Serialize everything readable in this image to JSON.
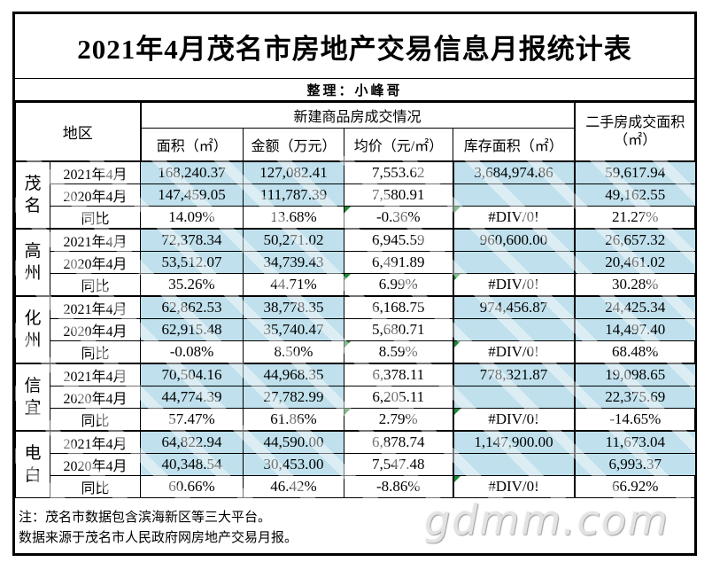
{
  "title": "2021年4月茂名市房地产交易信息月报统计表",
  "subtitle": "整理：小峰哥",
  "table": {
    "header": {
      "region": "地区",
      "new_homes_group": "新建商品房成交情况",
      "resale_line1": "二手房成交面积",
      "resale_line2": "（㎡）",
      "columns": [
        "面积（㎡）",
        "金额（万元）",
        "均价（元/㎡）",
        "库存面积（㎡）"
      ]
    },
    "groups": [
      {
        "region": "茂名",
        "rows": [
          {
            "label": "2021年4月",
            "area": "168,240.37",
            "amount": "127,082.41",
            "avg_price": "7,553.62",
            "inventory": "3,684,974.86",
            "resale": "59,617.94",
            "avg_flag": false,
            "inv_flag": false
          },
          {
            "label": "2020年4月",
            "area": "147,459.05",
            "amount": "111,787.39",
            "avg_price": "7,580.91",
            "inventory": "",
            "resale": "49,162.55",
            "avg_flag": false,
            "inv_flag": false
          },
          {
            "label": "同比",
            "area": "14.09%",
            "amount": "13.68%",
            "avg_price": "-0.36%",
            "inventory": "#DIV/0!",
            "resale": "21.27%",
            "avg_flag": true,
            "inv_flag": true
          }
        ]
      },
      {
        "region": "高州",
        "rows": [
          {
            "label": "2021年4月",
            "area": "72,378.34",
            "amount": "50,271.02",
            "avg_price": "6,945.59",
            "inventory": "960,600.00",
            "resale": "26,657.32",
            "avg_flag": false,
            "inv_flag": false
          },
          {
            "label": "2020年4月",
            "area": "53,512.07",
            "amount": "34,739.43",
            "avg_price": "6,491.89",
            "inventory": "",
            "resale": "20,461.02",
            "avg_flag": false,
            "inv_flag": false
          },
          {
            "label": "同比",
            "area": "35.26%",
            "amount": "44.71%",
            "avg_price": "6.99%",
            "inventory": "#DIV/0!",
            "resale": "30.28%",
            "avg_flag": true,
            "inv_flag": true
          }
        ]
      },
      {
        "region": "化州",
        "rows": [
          {
            "label": "2021年4月",
            "area": "62,862.53",
            "amount": "38,778.35",
            "avg_price": "6,168.75",
            "inventory": "974,456.87",
            "resale": "24,425.34",
            "avg_flag": false,
            "inv_flag": false
          },
          {
            "label": "2020年4月",
            "area": "62,915.48",
            "amount": "35,740.47",
            "avg_price": "5,680.71",
            "inventory": "",
            "resale": "14,497.40",
            "avg_flag": false,
            "inv_flag": false
          },
          {
            "label": "同比",
            "area": "-0.08%",
            "amount": "8.50%",
            "avg_price": "8.59%",
            "inventory": "#DIV/0!",
            "resale": "68.48%",
            "avg_flag": true,
            "inv_flag": true
          }
        ]
      },
      {
        "region": "信宜",
        "rows": [
          {
            "label": "2021年4月",
            "area": "70,504.16",
            "amount": "44,968.35",
            "avg_price": "6,378.11",
            "inventory": "778,321.87",
            "resale": "19,098.65",
            "avg_flag": false,
            "inv_flag": false
          },
          {
            "label": "2020年4月",
            "area": "44,774.39",
            "amount": "27,782.99",
            "avg_price": "6,205.11",
            "inventory": "",
            "resale": "22,375.69",
            "avg_flag": false,
            "inv_flag": false
          },
          {
            "label": "同比",
            "area": "57.47%",
            "amount": "61.86%",
            "avg_price": "2.79%",
            "inventory": "#DIV/0!",
            "resale": "-14.65%",
            "avg_flag": true,
            "inv_flag": true
          }
        ]
      },
      {
        "region": "电白",
        "rows": [
          {
            "label": "2021年4月",
            "area": "64,822.94",
            "amount": "44,590.00",
            "avg_price": "6,878.74",
            "inventory": "1,147,900.00",
            "resale": "11,673.04",
            "avg_flag": false,
            "inv_flag": false
          },
          {
            "label": "2020年4月",
            "area": "40,348.54",
            "amount": "30,453.00",
            "avg_price": "7,547.48",
            "inventory": "",
            "resale": "6,993.37",
            "avg_flag": false,
            "inv_flag": false
          },
          {
            "label": "同比",
            "area": "60.66%",
            "amount": "46.42%",
            "avg_price": "-8.86%",
            "inventory": "#DIV/0!",
            "resale": "66.92%",
            "avg_flag": false,
            "inv_flag": true
          }
        ]
      }
    ]
  },
  "notes": {
    "line1": "注：茂名市数据包含滨海新区等三大平台。",
    "line2": "数据来源于茂名市人民政府网房地产交易月报。"
  },
  "watermark": "gdmm.com",
  "colors": {
    "cell_blue": "#bfe0ec",
    "error_indicator_green": "#1d8a34",
    "watermark_gray": "#e3e3e3"
  }
}
